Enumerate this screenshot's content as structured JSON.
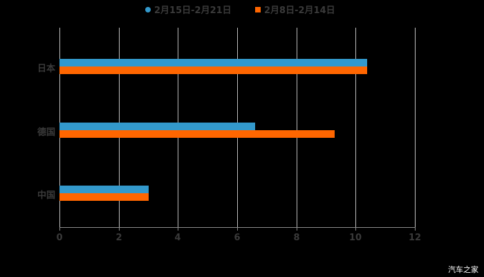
{
  "chart_data": {
    "type": "bar",
    "orientation": "horizontal",
    "title": "",
    "categories": [
      "日本",
      "德国",
      "中国"
    ],
    "series": [
      {
        "name": "2月15日-2月21日",
        "color": "#3399cc",
        "values": [
          10.4,
          6.6,
          3
        ]
      },
      {
        "name": "2月8日-2月14日",
        "color": "#ff6600",
        "values": [
          10.4,
          9.3,
          3
        ]
      }
    ],
    "xlabel": "",
    "ylabel": "",
    "xlim": [
      0,
      12
    ],
    "x_ticks": [
      "0",
      "2",
      "4",
      "6",
      "8",
      "10",
      "12"
    ],
    "grid": true,
    "legend_position": "top"
  },
  "legend": {
    "items": [
      {
        "label": "2月15日-2月21日",
        "color": "#3399cc"
      },
      {
        "label": "2月8日-2月14日",
        "color": "#ff6600"
      }
    ]
  },
  "watermark": "汽车之家"
}
